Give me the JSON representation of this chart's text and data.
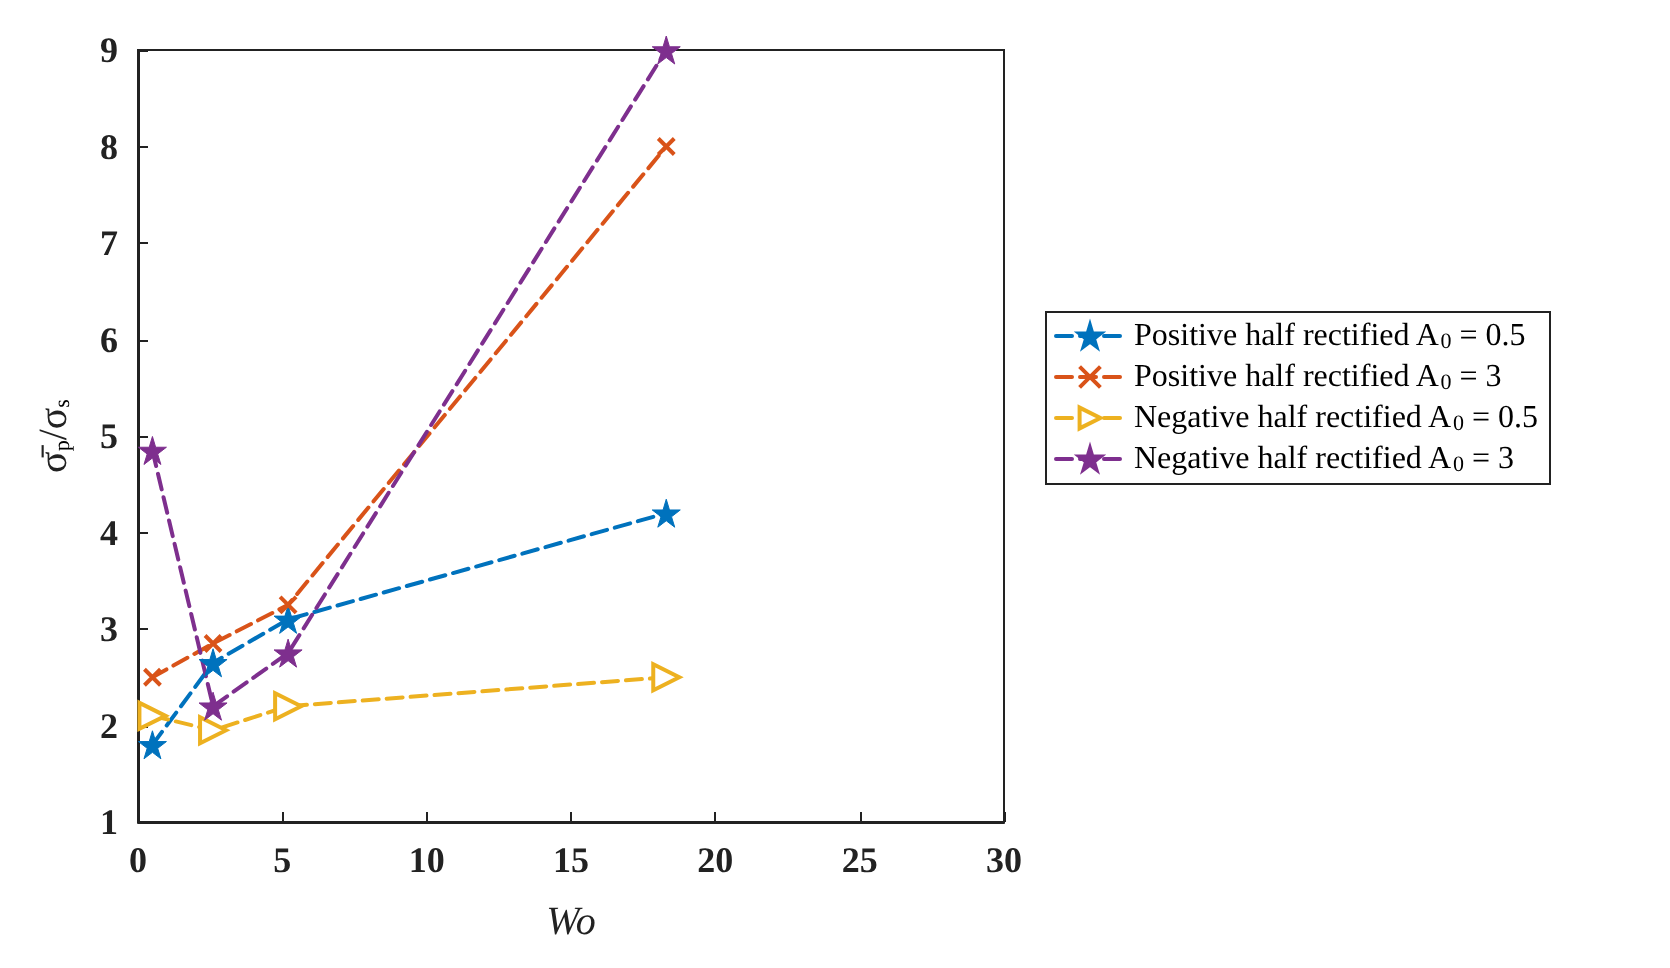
{
  "chart_data": {
    "type": "line",
    "xlabel": "Wo",
    "ylabel": "σ̄$_{p}$/σ$_{s}$",
    "x": [
      0.5,
      2.6,
      5.2,
      18.3
    ],
    "series": [
      {
        "name": "Positive half rectified A$_{0}$ = 0.5",
        "color": "#0072bd",
        "marker": "star",
        "values": [
          1.8,
          2.65,
          3.1,
          4.2
        ]
      },
      {
        "name": "Positive half rectified A$_{0}$ = 3",
        "color": "#d95319",
        "marker": "cross",
        "values": [
          2.5,
          2.85,
          3.25,
          8.0
        ]
      },
      {
        "name": "Negative half rectified A$_{0}$ = 0.5",
        "color": "#edb120",
        "marker": "triangle",
        "values": [
          2.1,
          1.95,
          2.2,
          2.5
        ]
      },
      {
        "name": "Negative half rectified A$_{0}$ = 3",
        "color": "#7e2f8e",
        "marker": "star",
        "values": [
          4.85,
          2.2,
          2.75,
          9.0
        ]
      }
    ],
    "xlim": [
      0,
      30
    ],
    "xticks": [
      0,
      5,
      10,
      15,
      20,
      25,
      30
    ],
    "ylim": [
      1,
      9
    ],
    "yticks": [
      1,
      2,
      3,
      4,
      5,
      6,
      7,
      8,
      9
    ],
    "grid": false,
    "legend": "right",
    "line_style": "dashed"
  }
}
